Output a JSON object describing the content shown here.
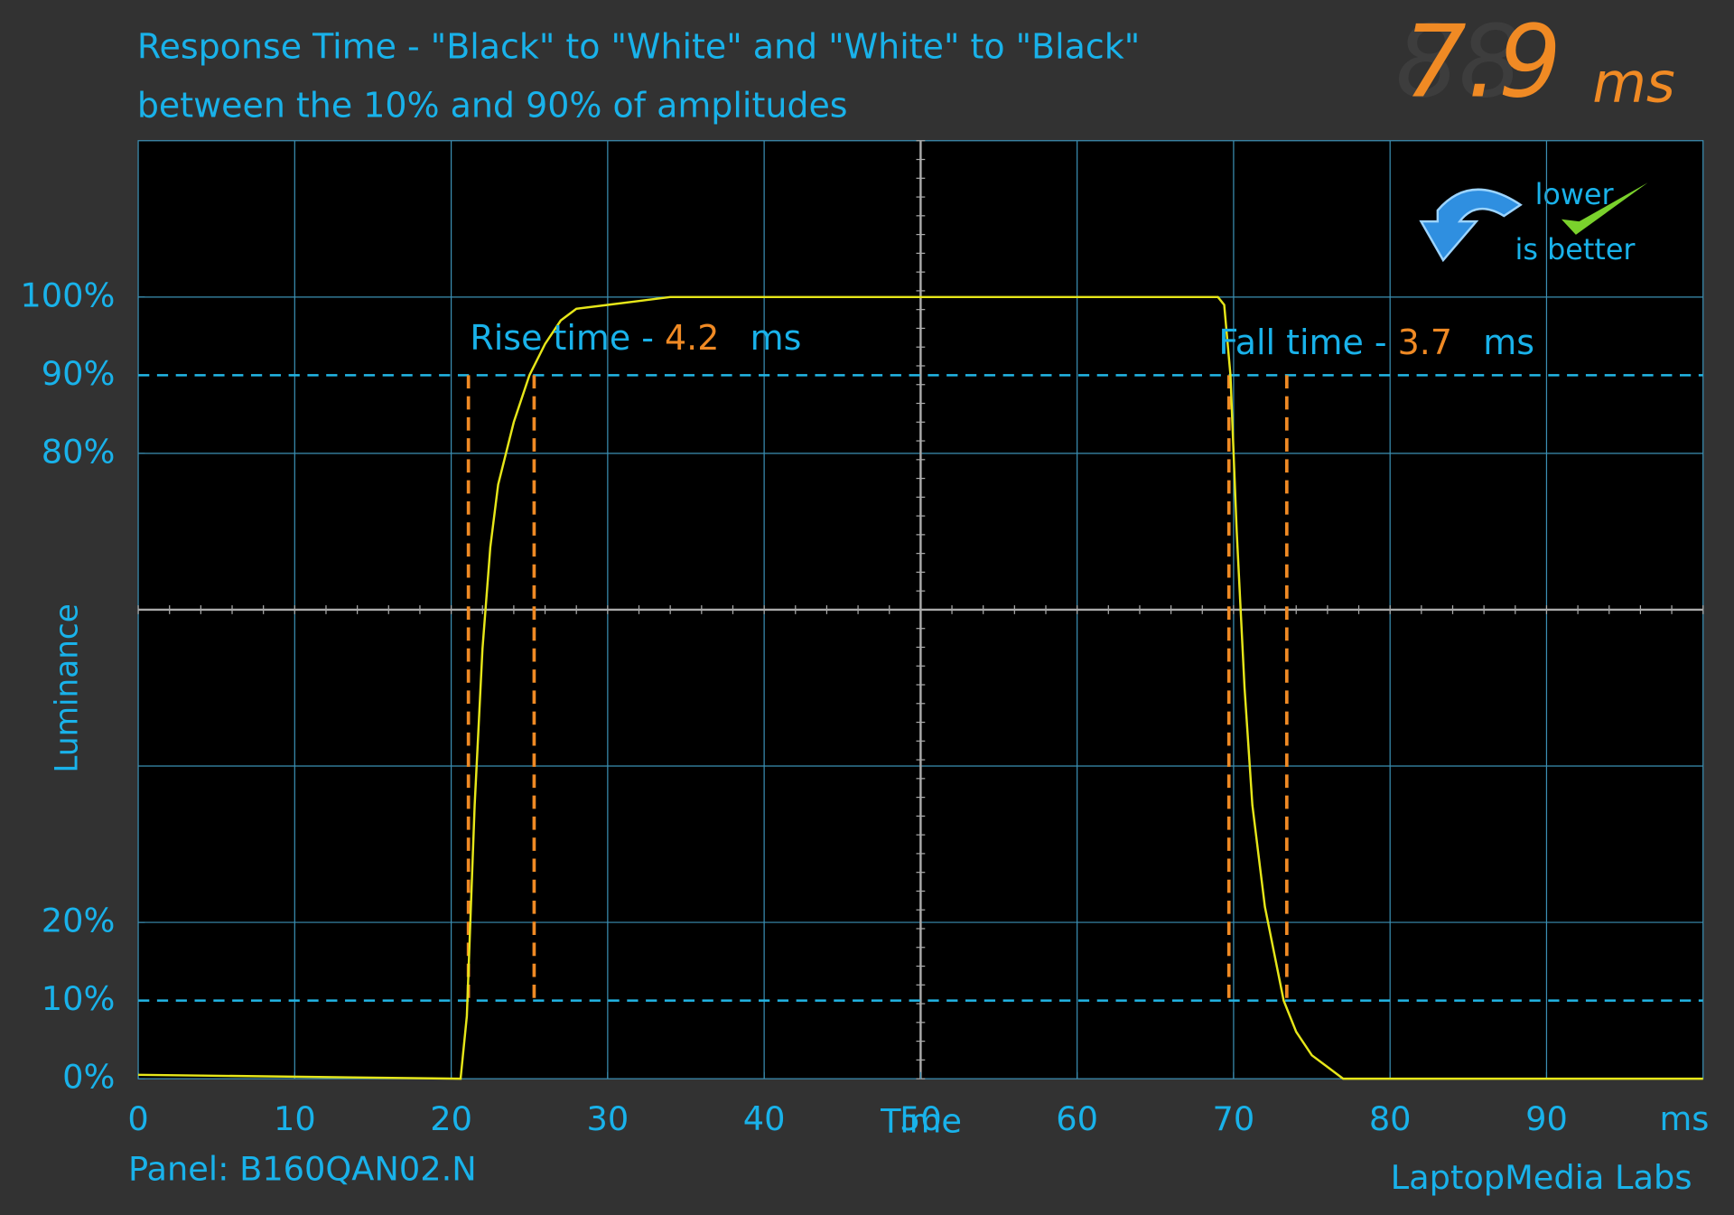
{
  "chart_data": {
    "type": "line",
    "title": [
      "Response Time - \"Black\" to \"White\" and \"White\" to \"Black\"",
      "between the 10% and 90% of amplitudes"
    ],
    "headline": {
      "value": 7.9,
      "unit": "ms"
    },
    "badge": [
      "lower",
      "is better"
    ],
    "xlabel": "Time",
    "ylabel": "Luminance",
    "x_unit": "ms",
    "footer_left": "Panel: B160QAN02.N",
    "footer_right": "LaptopMedia Labs",
    "xlim": [
      0,
      100
    ],
    "ylim": [
      0,
      120
    ],
    "xticks": [
      0,
      10,
      20,
      30,
      40,
      50,
      60,
      70,
      80,
      90
    ],
    "yticks": [
      {
        "value": 0,
        "label": "0%"
      },
      {
        "value": 10,
        "label": "10%"
      },
      {
        "value": 20,
        "label": "20%"
      },
      {
        "value": 80,
        "label": "80%"
      },
      {
        "value": 90,
        "label": "90%"
      },
      {
        "value": 100,
        "label": "100%"
      }
    ],
    "dashed_levels": [
      10,
      90
    ],
    "markers": [
      21.1,
      25.3,
      69.7,
      73.4
    ],
    "marker_color": "#f08a24",
    "annotations": [
      {
        "label": "Rise time - ",
        "value": 4.2,
        "unit": "ms"
      },
      {
        "label": "Fall time - ",
        "value": 3.7,
        "unit": "ms"
      }
    ],
    "series": [
      {
        "name": "Luminance",
        "color": "#e6e619",
        "x": [
          0,
          20.6,
          21,
          21.5,
          22,
          22.5,
          23,
          24,
          25,
          26,
          27,
          28,
          30,
          32,
          34,
          69,
          69.4,
          69.8,
          70.2,
          70.7,
          71.2,
          72,
          73.2,
          74,
          75,
          76,
          77,
          100
        ],
        "values": [
          0.5,
          0,
          8,
          35,
          55,
          68,
          76,
          84,
          90,
          94,
          97,
          98.5,
          99,
          99.5,
          100,
          100,
          99,
          90,
          70,
          50,
          35,
          22,
          10,
          6,
          3,
          1.5,
          0,
          0
        ]
      }
    ]
  }
}
